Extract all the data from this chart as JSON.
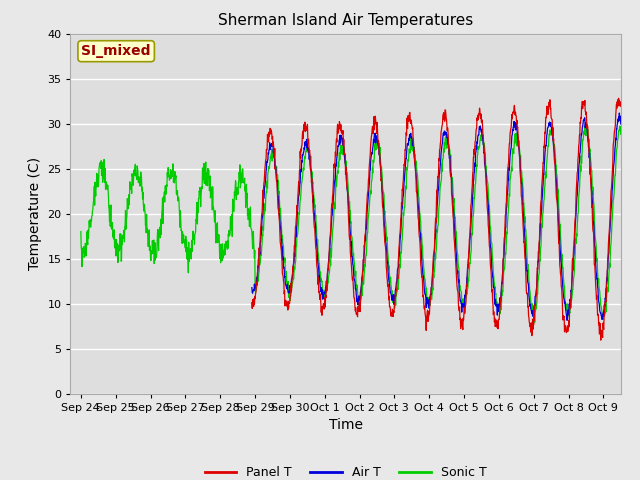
{
  "title": "Sherman Island Air Temperatures",
  "xlabel": "Time",
  "ylabel": "Temperature (C)",
  "ylim": [
    0,
    40
  ],
  "xlim_start": -0.3,
  "xlim_end": 15.5,
  "xtick_labels": [
    "Sep 24",
    "Sep 25",
    "Sep 26",
    "Sep 27",
    "Sep 28",
    "Sep 29",
    "Sep 30",
    "Oct 1",
    "Oct 2",
    "Oct 3",
    "Oct 4",
    "Oct 5",
    "Oct 6",
    "Oct 7",
    "Oct 8",
    "Oct 9"
  ],
  "xtick_positions": [
    0,
    1,
    2,
    3,
    4,
    5,
    6,
    7,
    8,
    9,
    10,
    11,
    12,
    13,
    14,
    15
  ],
  "legend_labels": [
    "Panel T",
    "Air T",
    "Sonic T"
  ],
  "panel_color": "#dd0000",
  "air_color": "#0000dd",
  "sonic_color": "#00cc00",
  "annotation_text": "SI_mixed",
  "annotation_color": "#990000",
  "annotation_bg": "#ffffcc",
  "plot_bg_color": "#dedede",
  "fig_bg_color": "#e8e8e8",
  "grid_color": "#ffffff",
  "title_fontsize": 11,
  "axis_label_fontsize": 10,
  "tick_fontsize": 8
}
